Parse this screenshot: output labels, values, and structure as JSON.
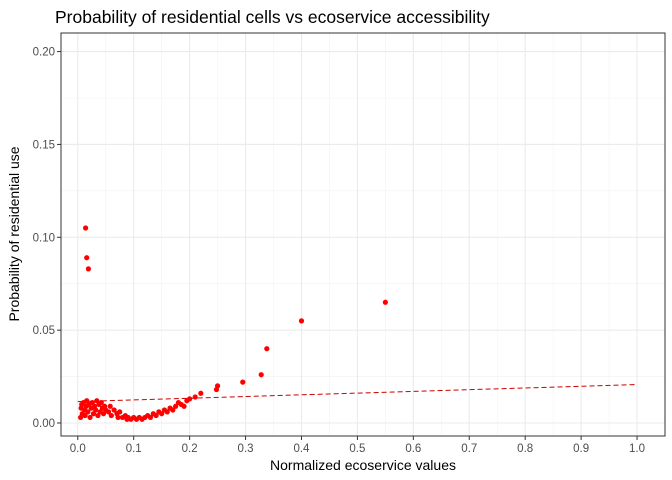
{
  "chart_data": {
    "type": "scatter",
    "title": "Probability of residential cells vs ecoservice accessibility",
    "xlabel": "Normalized ecoservice values",
    "ylabel": "Probability of residential use",
    "xlim": [
      -0.03,
      1.05
    ],
    "ylim": [
      -0.007,
      0.21
    ],
    "x_ticks": [
      0.0,
      0.1,
      0.2,
      0.3,
      0.4,
      0.5,
      0.6,
      0.7,
      0.8,
      0.9,
      1.0
    ],
    "x_tick_labels": [
      "0.0",
      "0.1",
      "0.2",
      "0.3",
      "0.4",
      "0.5",
      "0.6",
      "0.7",
      "0.8",
      "0.9",
      "1.0"
    ],
    "y_ticks": [
      0.0,
      0.05,
      0.1,
      0.15,
      0.2
    ],
    "y_tick_labels": [
      "0.00",
      "0.05",
      "0.10",
      "0.15",
      "0.20"
    ],
    "grid": true,
    "point_color": "#ff0000",
    "line_color": "#cc0000",
    "points": [
      [
        0.005,
        0.003
      ],
      [
        0.006,
        0.008
      ],
      [
        0.007,
        0.01
      ],
      [
        0.008,
        0.005
      ],
      [
        0.01,
        0.011
      ],
      [
        0.012,
        0.007
      ],
      [
        0.013,
        0.004
      ],
      [
        0.015,
        0.009
      ],
      [
        0.016,
        0.012
      ],
      [
        0.018,
        0.006
      ],
      [
        0.02,
        0.01
      ],
      [
        0.022,
        0.003
      ],
      [
        0.024,
        0.008
      ],
      [
        0.026,
        0.011
      ],
      [
        0.028,
        0.005
      ],
      [
        0.03,
        0.009
      ],
      [
        0.032,
        0.007
      ],
      [
        0.034,
        0.012
      ],
      [
        0.036,
        0.004
      ],
      [
        0.038,
        0.01
      ],
      [
        0.04,
        0.006
      ],
      [
        0.042,
        0.011
      ],
      [
        0.044,
        0.008
      ],
      [
        0.046,
        0.005
      ],
      [
        0.048,
        0.009
      ],
      [
        0.05,
        0.007
      ],
      [
        0.055,
        0.006
      ],
      [
        0.058,
        0.009
      ],
      [
        0.06,
        0.004
      ],
      [
        0.065,
        0.007
      ],
      [
        0.07,
        0.005
      ],
      [
        0.072,
        0.003
      ],
      [
        0.075,
        0.006
      ],
      [
        0.08,
        0.003
      ],
      [
        0.085,
        0.004
      ],
      [
        0.088,
        0.002
      ],
      [
        0.09,
        0.003
      ],
      [
        0.095,
        0.002
      ],
      [
        0.1,
        0.003
      ],
      [
        0.105,
        0.002
      ],
      [
        0.11,
        0.003
      ],
      [
        0.115,
        0.002
      ],
      [
        0.12,
        0.003
      ],
      [
        0.125,
        0.004
      ],
      [
        0.13,
        0.003
      ],
      [
        0.135,
        0.005
      ],
      [
        0.14,
        0.004
      ],
      [
        0.145,
        0.006
      ],
      [
        0.15,
        0.005
      ],
      [
        0.155,
        0.007
      ],
      [
        0.16,
        0.006
      ],
      [
        0.165,
        0.008
      ],
      [
        0.17,
        0.007
      ],
      [
        0.175,
        0.009
      ],
      [
        0.18,
        0.011
      ],
      [
        0.185,
        0.01
      ],
      [
        0.19,
        0.009
      ],
      [
        0.195,
        0.012
      ],
      [
        0.2,
        0.013
      ],
      [
        0.21,
        0.014
      ],
      [
        0.22,
        0.016
      ],
      [
        0.248,
        0.018
      ],
      [
        0.25,
        0.02
      ],
      [
        0.295,
        0.022
      ],
      [
        0.328,
        0.026
      ],
      [
        0.338,
        0.04
      ],
      [
        0.4,
        0.055
      ],
      [
        0.55,
        0.065
      ],
      [
        0.014,
        0.105
      ],
      [
        0.016,
        0.089
      ],
      [
        0.019,
        0.083
      ]
    ],
    "trend": [
      [
        0.0,
        0.0115
      ],
      [
        1.0,
        0.0207
      ]
    ]
  }
}
